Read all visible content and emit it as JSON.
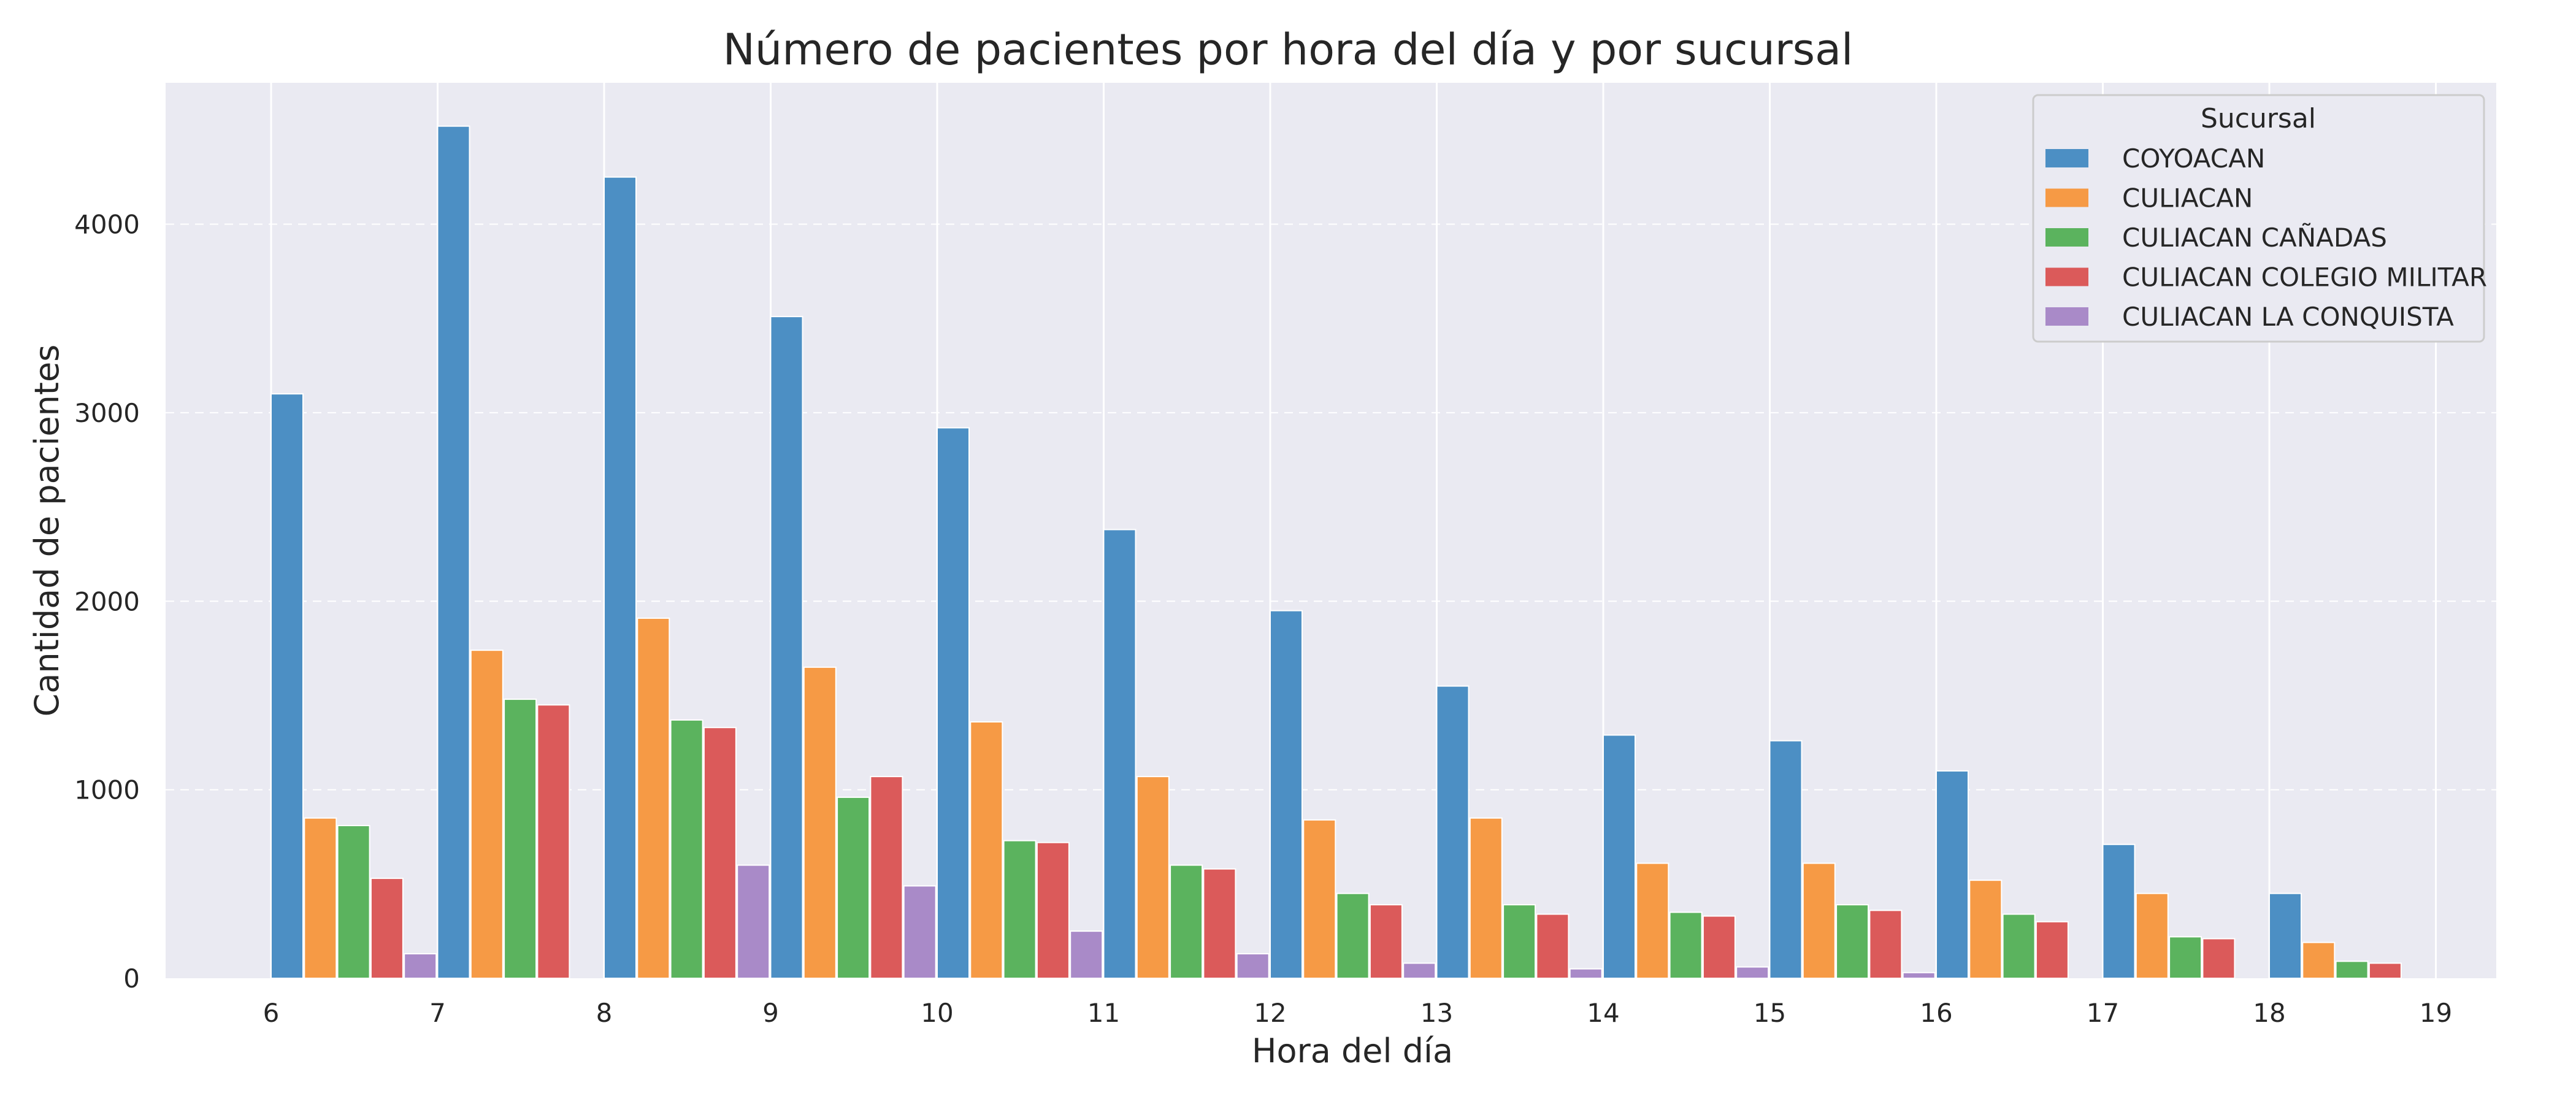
{
  "chart_data": {
    "type": "bar",
    "title": "Número de pacientes por hora del día y por sucursal",
    "xlabel": "Hora del día",
    "ylabel": "Cantidad de pacientes",
    "categories": [
      "6",
      "7",
      "8",
      "9",
      "10",
      "11",
      "12",
      "13",
      "14",
      "15",
      "16",
      "17",
      "18",
      "19"
    ],
    "yticks": [
      0,
      1000,
      2000,
      3000,
      4000
    ],
    "ylim": [
      0,
      4750
    ],
    "grid": true,
    "legend": {
      "title": "Sucursal",
      "placement": "top-right"
    },
    "series": [
      {
        "name": "COYOACAN",
        "color": "#4c8fc4",
        "values": [
          3100,
          4520,
          4250,
          3510,
          2920,
          2380,
          1950,
          1550,
          1290,
          1260,
          1100,
          710,
          450,
          null
        ]
      },
      {
        "name": "CULIACAN",
        "color": "#f69a45",
        "values": [
          850,
          1740,
          1910,
          1650,
          1360,
          1070,
          840,
          850,
          610,
          610,
          520,
          450,
          190,
          null
        ]
      },
      {
        "name": "CULIACAN CAÑADAS",
        "color": "#5bb35e",
        "values": [
          810,
          1480,
          1370,
          960,
          730,
          600,
          450,
          390,
          350,
          390,
          340,
          220,
          90,
          null
        ]
      },
      {
        "name": "CULIACAN COLEGIO MILITAR",
        "color": "#db5a5a",
        "values": [
          530,
          1450,
          1330,
          1070,
          720,
          580,
          390,
          340,
          330,
          360,
          300,
          210,
          80,
          null
        ]
      },
      {
        "name": "CULIACAN LA CONQUISTA",
        "color": "#a98ac8",
        "values": [
          130,
          null,
          600,
          490,
          250,
          130,
          80,
          50,
          60,
          30,
          null,
          null,
          null,
          null
        ]
      }
    ]
  }
}
